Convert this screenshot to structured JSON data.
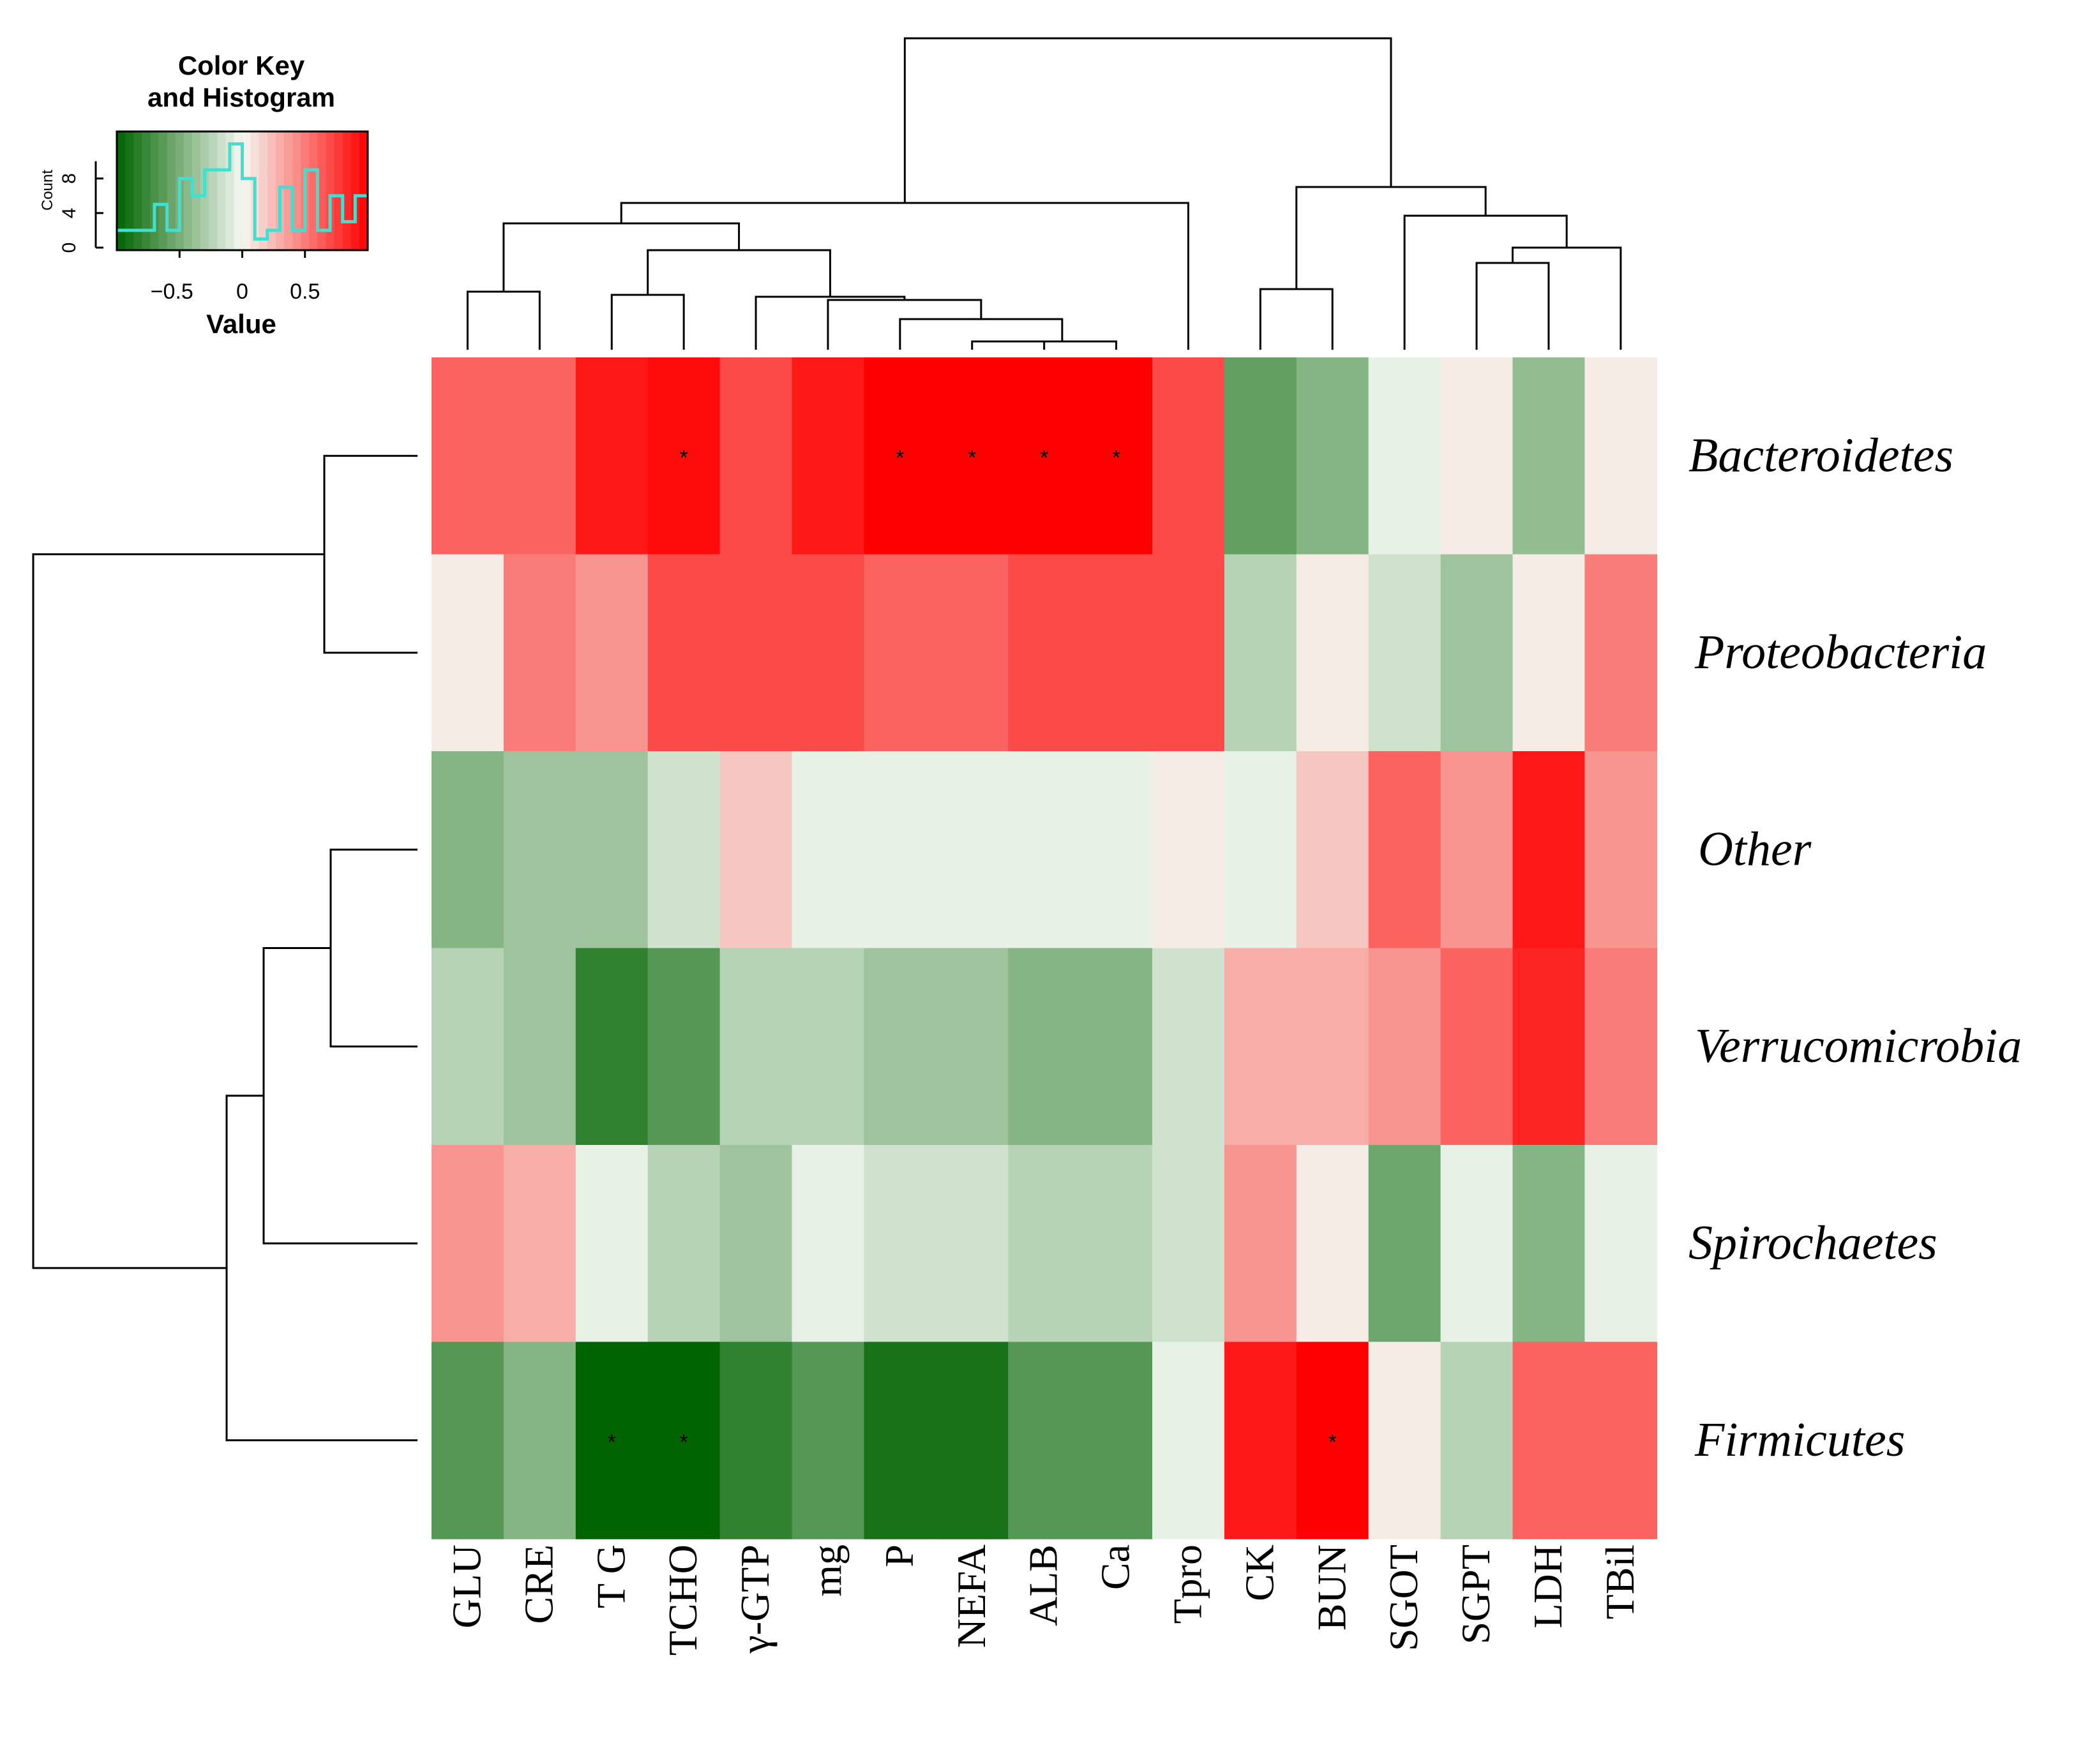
{
  "chart_data": {
    "type": "heatmap",
    "title": "",
    "columns": [
      "GLU",
      "CRE",
      "T G",
      "TCHO",
      "γ-GTP",
      "mg",
      "P",
      "NEFA",
      "ALB",
      "Ca",
      "Tpro",
      "CK",
      "BUN",
      "SGOT",
      "SGPT",
      "LDH",
      "TBil"
    ],
    "rows": [
      "Bacteroidetes",
      "Proteobacteria",
      "Other",
      "Verrucomicrobia",
      "Spirochaetes",
      "Firmicutes"
    ],
    "values": [
      [
        0.6,
        0.6,
        0.9,
        0.95,
        0.7,
        0.9,
        1.0,
        1.0,
        1.0,
        1.0,
        0.7,
        -0.6,
        -0.45,
        -0.05,
        0.05,
        -0.4,
        0.05
      ],
      [
        0.05,
        0.5,
        0.4,
        0.7,
        0.7,
        0.7,
        0.6,
        0.6,
        0.7,
        0.7,
        0.7,
        -0.25,
        0.05,
        -0.15,
        -0.35,
        0.05,
        0.5
      ],
      [
        -0.45,
        -0.35,
        -0.35,
        -0.15,
        0.2,
        -0.05,
        -0.05,
        -0.05,
        -0.05,
        -0.05,
        0.05,
        -0.05,
        0.2,
        0.6,
        0.4,
        0.9,
        0.4
      ],
      [
        -0.25,
        -0.35,
        -0.8,
        -0.65,
        -0.25,
        -0.25,
        -0.35,
        -0.35,
        -0.45,
        -0.45,
        -0.15,
        0.3,
        0.3,
        0.4,
        0.6,
        0.85,
        0.5
      ],
      [
        0.4,
        0.3,
        -0.05,
        -0.25,
        -0.35,
        -0.05,
        -0.15,
        -0.15,
        -0.25,
        -0.25,
        -0.15,
        0.4,
        0.05,
        -0.55,
        -0.05,
        -0.45,
        -0.05
      ],
      [
        -0.65,
        -0.45,
        -1.0,
        -1.0,
        -0.8,
        -0.65,
        -0.9,
        -0.9,
        -0.65,
        -0.65,
        -0.05,
        0.9,
        1.0,
        0.05,
        -0.25,
        0.6,
        0.6
      ]
    ],
    "significance_marker": "*",
    "significant_cells": [
      [
        "Bacteroidetes",
        "TCHO"
      ],
      [
        "Bacteroidetes",
        "P"
      ],
      [
        "Bacteroidetes",
        "NEFA"
      ],
      [
        "Bacteroidetes",
        "ALB"
      ],
      [
        "Bacteroidetes",
        "Ca"
      ],
      [
        "Firmicutes",
        "T G"
      ],
      [
        "Firmicutes",
        "TCHO"
      ],
      [
        "Firmicutes",
        "BUN"
      ]
    ],
    "color_scale": {
      "low": "#006400",
      "mid": "#f4f8f2",
      "high": "#ff0000",
      "range": [
        -1,
        1
      ]
    },
    "legend": {
      "title_line1": "Color Key",
      "title_line2": "and Histogram",
      "xlabel": "Value",
      "ylabel": "Count",
      "x_ticks": [
        "−0.5",
        "0",
        "0.5"
      ],
      "x_tick_values": [
        -0.5,
        0,
        0.5
      ],
      "y_ticks": [
        "0",
        "4",
        "8"
      ],
      "y_tick_values": [
        0,
        4,
        8
      ],
      "y_max": 13,
      "histogram_bin_edges": [
        -1.0,
        -0.9,
        -0.8,
        -0.7,
        -0.6,
        -0.5,
        -0.4,
        -0.3,
        -0.2,
        -0.1,
        0.0,
        0.1,
        0.2,
        0.3,
        0.4,
        0.5,
        0.6,
        0.7,
        0.8,
        0.9,
        1.0
      ],
      "histogram_counts": [
        2,
        2,
        2,
        5,
        2,
        8,
        6,
        9,
        9,
        12,
        8,
        1,
        2,
        7,
        2,
        9,
        2,
        6,
        3,
        6
      ],
      "histogram_color": "#40e0d0",
      "placement": "top-left"
    }
  }
}
